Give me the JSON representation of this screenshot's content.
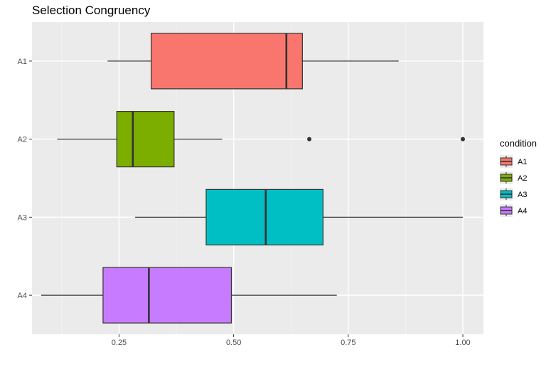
{
  "chart_data": {
    "type": "boxplot",
    "orientation": "horizontal",
    "title": "Selection Congruency",
    "xlabel": "",
    "ylabel": "",
    "xlim": [
      0.06,
      1.045
    ],
    "x_ticks": [
      0.25,
      0.5,
      0.75,
      1.0
    ],
    "x_tick_labels": [
      "0.25",
      "0.50",
      "0.75",
      "1.00"
    ],
    "x_minor_ticks": [
      0.125,
      0.375,
      0.625,
      0.875
    ],
    "categories": [
      "A1",
      "A2",
      "A3",
      "A4"
    ],
    "grid": true,
    "legend": {
      "title": "condition",
      "position": "right",
      "entries": [
        "A1",
        "A2",
        "A3",
        "A4"
      ]
    },
    "colors": {
      "A1": "#f8766d",
      "A2": "#7cae00",
      "A3": "#00bfc4",
      "A4": "#c77cff",
      "panel": "#ebebeb",
      "grid_major": "#ffffff",
      "grid_minor": "#f5f5f5"
    },
    "series": [
      {
        "name": "A1",
        "whisker_low": 0.225,
        "q1": 0.32,
        "median": 0.615,
        "q3": 0.65,
        "whisker_high": 0.86,
        "outliers": []
      },
      {
        "name": "A2",
        "whisker_low": 0.115,
        "q1": 0.245,
        "median": 0.28,
        "q3": 0.37,
        "whisker_high": 0.475,
        "outliers": [
          0.665,
          1.0
        ]
      },
      {
        "name": "A3",
        "whisker_low": 0.285,
        "q1": 0.44,
        "median": 0.57,
        "q3": 0.695,
        "whisker_high": 1.0,
        "outliers": []
      },
      {
        "name": "A4",
        "whisker_low": 0.08,
        "q1": 0.215,
        "median": 0.315,
        "q3": 0.495,
        "whisker_high": 0.725,
        "outliers": []
      }
    ]
  }
}
